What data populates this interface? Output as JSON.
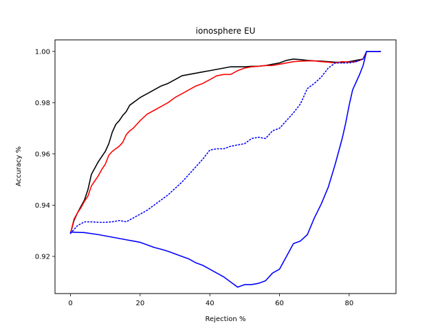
{
  "chart_data": {
    "type": "line",
    "title": "ionosphere EU",
    "xlabel": "Rejection %",
    "ylabel": "Accuracy %",
    "xlim": [
      -4.45,
      93.45
    ],
    "ylim": [
      0.9055,
      1.0045
    ],
    "xticks": [
      0,
      20,
      40,
      60,
      80
    ],
    "yticks": [
      0.92,
      0.94,
      0.96,
      0.98,
      1.0
    ],
    "ytick_labels": [
      "0.92",
      "0.94",
      "0.96",
      "0.98",
      "1.00"
    ],
    "grid": false,
    "legend": "none",
    "series": [
      {
        "color": "#000000",
        "style": "solid",
        "points": [
          [
            0,
            0.929
          ],
          [
            1,
            0.934
          ],
          [
            2,
            0.937
          ],
          [
            3,
            0.9395
          ],
          [
            4,
            0.942
          ],
          [
            5,
            0.946
          ],
          [
            6,
            0.952
          ],
          [
            7,
            0.9545
          ],
          [
            8,
            0.957
          ],
          [
            9,
            0.959
          ],
          [
            10,
            0.961
          ],
          [
            11,
            0.964
          ],
          [
            12,
            0.9685
          ],
          [
            13,
            0.9715
          ],
          [
            14,
            0.973
          ],
          [
            15,
            0.975
          ],
          [
            16,
            0.9765
          ],
          [
            17,
            0.979
          ],
          [
            18,
            0.98
          ],
          [
            19,
            0.981
          ],
          [
            20,
            0.982
          ],
          [
            22,
            0.9835
          ],
          [
            24,
            0.985
          ],
          [
            26,
            0.9865
          ],
          [
            28,
            0.9875
          ],
          [
            30,
            0.989
          ],
          [
            32,
            0.9905
          ],
          [
            34,
            0.991
          ],
          [
            36,
            0.9915
          ],
          [
            38,
            0.992
          ],
          [
            40,
            0.9925
          ],
          [
            42,
            0.993
          ],
          [
            44,
            0.9935
          ],
          [
            46,
            0.994
          ],
          [
            48,
            0.994
          ],
          [
            50,
            0.994
          ],
          [
            52,
            0.9942
          ],
          [
            54,
            0.9942
          ],
          [
            56,
            0.9945
          ],
          [
            58,
            0.995
          ],
          [
            60,
            0.9955
          ],
          [
            62,
            0.9965
          ],
          [
            64,
            0.997
          ],
          [
            66,
            0.9968
          ],
          [
            68,
            0.9965
          ],
          [
            70,
            0.9963
          ],
          [
            72,
            0.9962
          ],
          [
            74,
            0.996
          ],
          [
            76,
            0.9958
          ],
          [
            78,
            0.9957
          ],
          [
            80,
            0.996
          ],
          [
            82,
            0.9965
          ],
          [
            84,
            0.997
          ],
          [
            85,
            1.0
          ],
          [
            89,
            1.0
          ]
        ]
      },
      {
        "color": "#ff0000",
        "style": "solid",
        "points": [
          [
            0,
            0.929
          ],
          [
            1,
            0.9345
          ],
          [
            2,
            0.937
          ],
          [
            3,
            0.939
          ],
          [
            4,
            0.9415
          ],
          [
            5,
            0.9435
          ],
          [
            6,
            0.9475
          ],
          [
            7,
            0.9495
          ],
          [
            8,
            0.9515
          ],
          [
            9,
            0.954
          ],
          [
            10,
            0.956
          ],
          [
            11,
            0.9595
          ],
          [
            12,
            0.961
          ],
          [
            13,
            0.962
          ],
          [
            14,
            0.963
          ],
          [
            15,
            0.9645
          ],
          [
            16,
            0.9675
          ],
          [
            17,
            0.969
          ],
          [
            18,
            0.97
          ],
          [
            19,
            0.9715
          ],
          [
            20,
            0.973
          ],
          [
            22,
            0.9755
          ],
          [
            24,
            0.977
          ],
          [
            26,
            0.9785
          ],
          [
            28,
            0.98
          ],
          [
            30,
            0.982
          ],
          [
            32,
            0.9835
          ],
          [
            34,
            0.985
          ],
          [
            36,
            0.9865
          ],
          [
            38,
            0.9875
          ],
          [
            40,
            0.989
          ],
          [
            42,
            0.9905
          ],
          [
            44,
            0.991
          ],
          [
            46,
            0.991
          ],
          [
            48,
            0.9925
          ],
          [
            50,
            0.9935
          ],
          [
            52,
            0.994
          ],
          [
            54,
            0.9942
          ],
          [
            56,
            0.9945
          ],
          [
            58,
            0.9945
          ],
          [
            60,
            0.995
          ],
          [
            62,
            0.9955
          ],
          [
            64,
            0.996
          ],
          [
            66,
            0.9962
          ],
          [
            68,
            0.9963
          ],
          [
            70,
            0.9963
          ],
          [
            72,
            0.996
          ],
          [
            74,
            0.9958
          ],
          [
            76,
            0.9955
          ],
          [
            78,
            0.996
          ],
          [
            80,
            0.9958
          ],
          [
            82,
            0.996
          ],
          [
            84,
            0.997
          ],
          [
            85,
            1.0
          ],
          [
            89,
            1.0
          ]
        ]
      },
      {
        "color": "#0000ff",
        "style": "dotted",
        "points": [
          [
            0,
            0.929
          ],
          [
            2,
            0.932
          ],
          [
            4,
            0.9335
          ],
          [
            6,
            0.9335
          ],
          [
            8,
            0.9333
          ],
          [
            10,
            0.9333
          ],
          [
            12,
            0.9335
          ],
          [
            14,
            0.934
          ],
          [
            16,
            0.9335
          ],
          [
            18,
            0.935
          ],
          [
            20,
            0.9365
          ],
          [
            22,
            0.938
          ],
          [
            24,
            0.94
          ],
          [
            26,
            0.942
          ],
          [
            28,
            0.944
          ],
          [
            30,
            0.9465
          ],
          [
            32,
            0.949
          ],
          [
            34,
            0.952
          ],
          [
            36,
            0.955
          ],
          [
            38,
            0.958
          ],
          [
            40,
            0.9615
          ],
          [
            42,
            0.962
          ],
          [
            44,
            0.962
          ],
          [
            46,
            0.963
          ],
          [
            48,
            0.9635
          ],
          [
            50,
            0.964
          ],
          [
            52,
            0.966
          ],
          [
            54,
            0.9665
          ],
          [
            56,
            0.966
          ],
          [
            58,
            0.969
          ],
          [
            60,
            0.97
          ],
          [
            62,
            0.973
          ],
          [
            64,
            0.976
          ],
          [
            66,
            0.9795
          ],
          [
            68,
            0.9855
          ],
          [
            70,
            0.9875
          ],
          [
            72,
            0.99
          ],
          [
            74,
            0.9935
          ],
          [
            76,
            0.9955
          ],
          [
            78,
            0.9955
          ],
          [
            80,
            0.9955
          ],
          [
            82,
            0.996
          ],
          [
            84,
            0.997
          ],
          [
            85,
            1.0
          ],
          [
            89,
            1.0
          ]
        ]
      },
      {
        "color": "#0000ff",
        "style": "solid",
        "points": [
          [
            0,
            0.9295
          ],
          [
            4,
            0.9293
          ],
          [
            8,
            0.9285
          ],
          [
            10,
            0.928
          ],
          [
            12,
            0.9275
          ],
          [
            14,
            0.927
          ],
          [
            16,
            0.9265
          ],
          [
            18,
            0.926
          ],
          [
            20,
            0.9255
          ],
          [
            22,
            0.9245
          ],
          [
            24,
            0.9235
          ],
          [
            26,
            0.9228
          ],
          [
            28,
            0.922
          ],
          [
            30,
            0.921
          ],
          [
            32,
            0.92
          ],
          [
            34,
            0.919
          ],
          [
            36,
            0.9175
          ],
          [
            38,
            0.9165
          ],
          [
            40,
            0.915
          ],
          [
            42,
            0.9135
          ],
          [
            44,
            0.912
          ],
          [
            46,
            0.91
          ],
          [
            48,
            0.908
          ],
          [
            50,
            0.909
          ],
          [
            52,
            0.909
          ],
          [
            54,
            0.9095
          ],
          [
            56,
            0.9105
          ],
          [
            58,
            0.9135
          ],
          [
            60,
            0.915
          ],
          [
            62,
            0.92
          ],
          [
            64,
            0.925
          ],
          [
            66,
            0.926
          ],
          [
            68,
            0.9285
          ],
          [
            70,
            0.935
          ],
          [
            72,
            0.9405
          ],
          [
            74,
            0.947
          ],
          [
            76,
            0.956
          ],
          [
            78,
            0.966
          ],
          [
            79,
            0.972
          ],
          [
            80,
            0.979
          ],
          [
            81,
            0.985
          ],
          [
            82,
            0.988
          ],
          [
            83,
            0.991
          ],
          [
            84,
            0.9945
          ],
          [
            85,
            1.0
          ],
          [
            89,
            1.0
          ]
        ]
      }
    ]
  }
}
